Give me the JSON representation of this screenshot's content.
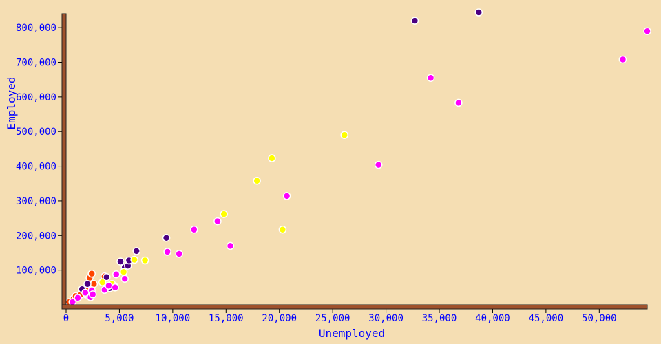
{
  "colors": {
    "background": "#f5deb3",
    "axis": "#a0522d",
    "axis_stroke": "#222222",
    "text": "#0000ff",
    "tick_mark": "#000000"
  },
  "chart_data": {
    "type": "scatter",
    "xlabel": "Unemployed",
    "ylabel": "Employed",
    "xlim": [
      0,
      54500
    ],
    "ylim": [
      0,
      840000
    ],
    "x_ticks": [
      {
        "value": 0,
        "label": "0"
      },
      {
        "value": 5000,
        "label": "5,000"
      },
      {
        "value": 10000,
        "label": "10,000"
      },
      {
        "value": 15000,
        "label": "15,000"
      },
      {
        "value": 20000,
        "label": "20,000"
      },
      {
        "value": 25000,
        "label": "25,000"
      },
      {
        "value": 30000,
        "label": "30,000"
      },
      {
        "value": 35000,
        "label": "35,000"
      },
      {
        "value": 40000,
        "label": "40,000"
      },
      {
        "value": 45000,
        "label": "45,000"
      },
      {
        "value": 50000,
        "label": "50,000"
      }
    ],
    "y_ticks": [
      {
        "value": 100000,
        "label": "100,000"
      },
      {
        "value": 200000,
        "label": "200,000"
      },
      {
        "value": 300000,
        "label": "300,000"
      },
      {
        "value": 400000,
        "label": "400,000"
      },
      {
        "value": 500000,
        "label": "500,000"
      },
      {
        "value": 600000,
        "label": "600,000"
      },
      {
        "value": 700000,
        "label": "700,000"
      },
      {
        "value": 800000,
        "label": "800,000"
      }
    ],
    "grid": false,
    "legend": "none",
    "series": [
      {
        "color": "#ff4500",
        "points": [
          {
            "x": 700,
            "y": 18000
          },
          {
            "x": 900,
            "y": 25000
          },
          {
            "x": 1400,
            "y": 30000
          },
          {
            "x": 1900,
            "y": 45000
          },
          {
            "x": 2200,
            "y": 78000
          },
          {
            "x": 2400,
            "y": 90000
          },
          {
            "x": 2600,
            "y": 60000
          },
          {
            "x": 3600,
            "y": 82000
          },
          {
            "x": 4500,
            "y": 55000
          },
          {
            "x": 300,
            "y": 8000
          }
        ]
      },
      {
        "color": "#4b0082",
        "points": [
          {
            "x": 1500,
            "y": 45000
          },
          {
            "x": 1900,
            "y": 30000
          },
          {
            "x": 2000,
            "y": 60000
          },
          {
            "x": 3800,
            "y": 80000
          },
          {
            "x": 4100,
            "y": 48000
          },
          {
            "x": 5100,
            "y": 125000
          },
          {
            "x": 5500,
            "y": 108000
          },
          {
            "x": 5800,
            "y": 113000
          },
          {
            "x": 5900,
            "y": 128000
          },
          {
            "x": 6600,
            "y": 155000
          },
          {
            "x": 9400,
            "y": 193000
          },
          {
            "x": 32700,
            "y": 820000
          },
          {
            "x": 38700,
            "y": 844000
          }
        ]
      },
      {
        "color": "#ffff00",
        "points": [
          {
            "x": 3400,
            "y": 65000
          },
          {
            "x": 5400,
            "y": 95000
          },
          {
            "x": 6400,
            "y": 130000
          },
          {
            "x": 7400,
            "y": 128000
          },
          {
            "x": 14800,
            "y": 262000
          },
          {
            "x": 17900,
            "y": 358000
          },
          {
            "x": 19300,
            "y": 423000
          },
          {
            "x": 20300,
            "y": 217000
          },
          {
            "x": 26100,
            "y": 490000
          },
          {
            "x": 4300,
            "y": 60000
          }
        ]
      },
      {
        "color": "#ff00ff",
        "points": [
          {
            "x": 600,
            "y": 8000
          },
          {
            "x": 1100,
            "y": 20000
          },
          {
            "x": 1800,
            "y": 35000
          },
          {
            "x": 2300,
            "y": 22000
          },
          {
            "x": 2400,
            "y": 42000
          },
          {
            "x": 2500,
            "y": 30000
          },
          {
            "x": 3600,
            "y": 43000
          },
          {
            "x": 4000,
            "y": 55000
          },
          {
            "x": 4600,
            "y": 50000
          },
          {
            "x": 4700,
            "y": 88000
          },
          {
            "x": 5500,
            "y": 75000
          },
          {
            "x": 9500,
            "y": 153000
          },
          {
            "x": 10600,
            "y": 147000
          },
          {
            "x": 12000,
            "y": 217000
          },
          {
            "x": 14200,
            "y": 241000
          },
          {
            "x": 15400,
            "y": 170000
          },
          {
            "x": 20700,
            "y": 314000
          },
          {
            "x": 29300,
            "y": 404000
          },
          {
            "x": 34200,
            "y": 655000
          },
          {
            "x": 36800,
            "y": 583000
          },
          {
            "x": 52200,
            "y": 708000
          },
          {
            "x": 54500,
            "y": 790000
          }
        ]
      }
    ]
  }
}
